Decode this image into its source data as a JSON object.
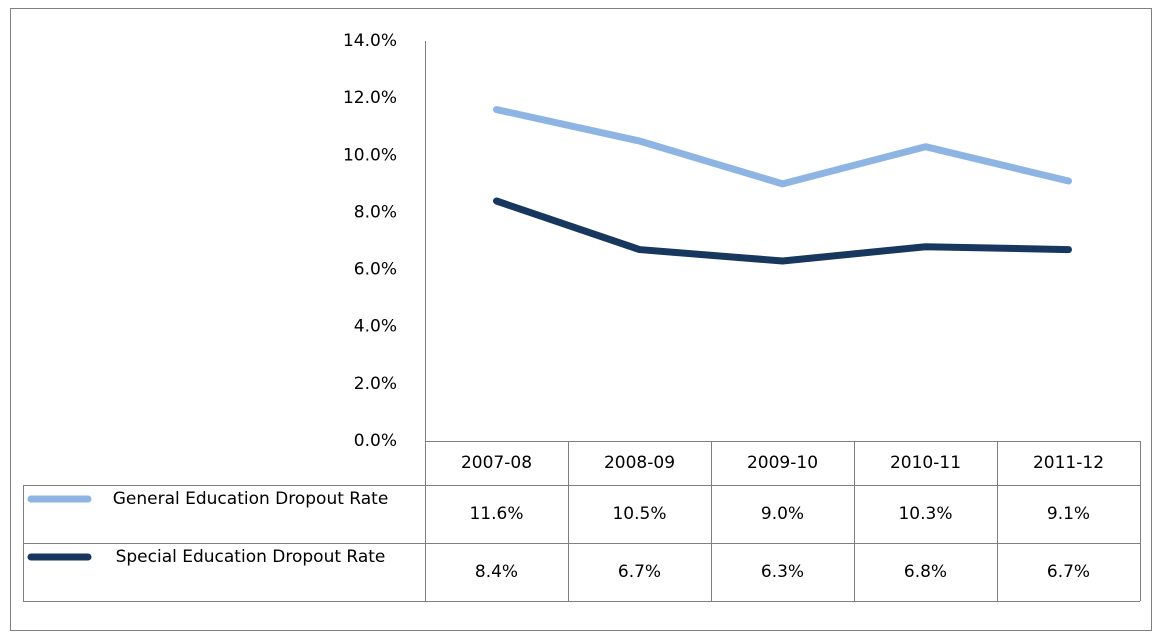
{
  "chart_data": {
    "type": "line",
    "categories": [
      "2007-08",
      "2008-09",
      "2009-10",
      "2010-11",
      "2011-12"
    ],
    "series": [
      {
        "name": "General Education Dropout Rate",
        "color": "#8eb4e3",
        "values": [
          11.6,
          10.5,
          9.0,
          10.3,
          9.1
        ],
        "value_labels": [
          "11.6%",
          "10.5%",
          "9.0%",
          "10.3%",
          "9.1%"
        ]
      },
      {
        "name": "Special Education Dropout Rate",
        "color": "#17375e",
        "values": [
          8.4,
          6.7,
          6.3,
          6.8,
          6.7
        ],
        "value_labels": [
          "8.4%",
          "6.7%",
          "6.3%",
          "6.8%",
          "6.7%"
        ]
      }
    ],
    "ylim": [
      0,
      14
    ],
    "yticks": [
      {
        "value": 0,
        "label": "0.0%"
      },
      {
        "value": 2,
        "label": "2.0%"
      },
      {
        "value": 4,
        "label": "4.0%"
      },
      {
        "value": 6,
        "label": "6.0%"
      },
      {
        "value": 8,
        "label": "8.0%"
      },
      {
        "value": 10,
        "label": "10.0%"
      },
      {
        "value": 12,
        "label": "12.0%"
      },
      {
        "value": 14,
        "label": "14.0%"
      }
    ],
    "grid": false,
    "data_table": true
  }
}
